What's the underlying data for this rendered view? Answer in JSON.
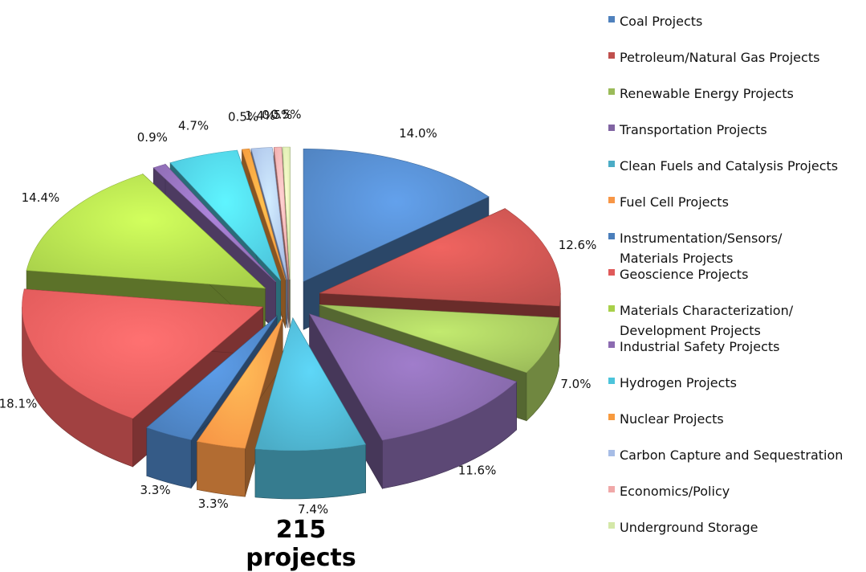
{
  "caption": "215 projects",
  "chart_data": {
    "type": "pie",
    "title": "",
    "total_label": "215 projects",
    "slices": [
      {
        "label": "Coal Projects",
        "value": 14.0,
        "value_label": "14.0%",
        "color": "#4f81bd"
      },
      {
        "label": "Petroleum/Natural Gas Projects",
        "value": 12.6,
        "value_label": "12.6%",
        "color": "#c0504d"
      },
      {
        "label": "Renewable Energy Projects",
        "value": 7.0,
        "value_label": "7.0%",
        "color": "#9bbb59"
      },
      {
        "label": "Transportation Projects",
        "value": 11.6,
        "value_label": "11.6%",
        "color": "#8064a2"
      },
      {
        "label": "Clean Fuels and Catalysis Projects",
        "value": 7.4,
        "value_label": "7.4%",
        "color": "#4bacc6"
      },
      {
        "label": "Fuel Cell Projects",
        "value": 3.3,
        "value_label": "3.3%",
        "color": "#f79646"
      },
      {
        "label": "Instrumentation/Sensors/\nMaterials Projects",
        "value": 3.3,
        "value_label": "3.3%",
        "color": "#4a7ebb"
      },
      {
        "label": "Geoscience Projects",
        "value": 18.1,
        "value_label": "18.1%",
        "color": "#e05a5a"
      },
      {
        "label": "Materials Characterization/\nDevelopment Projects",
        "value": 14.4,
        "value_label": "14.4%",
        "color": "#a8d04a"
      },
      {
        "label": "Industrial Safety Projects",
        "value": 0.9,
        "value_label": "0.9%",
        "color": "#8c6bb1"
      },
      {
        "label": "Hydrogen Projects",
        "value": 4.7,
        "value_label": "4.7%",
        "color": "#4cc4db"
      },
      {
        "label": "Nuclear Projects",
        "value": 0.5,
        "value_label": "0.5%",
        "color": "#f79a3e"
      },
      {
        "label": "Carbon Capture and Sequestration",
        "value": 1.4,
        "value_label": "1.4%",
        "color": "#a7bde6"
      },
      {
        "label": "Economics/Policy",
        "value": 0.5,
        "value_label": "0.5%",
        "color": "#f0a8a8"
      },
      {
        "label": "Underground Storage",
        "value": 0.5,
        "value_label": "0.5%",
        "color": "#d4e8a8"
      }
    ],
    "legend_position": "right"
  }
}
